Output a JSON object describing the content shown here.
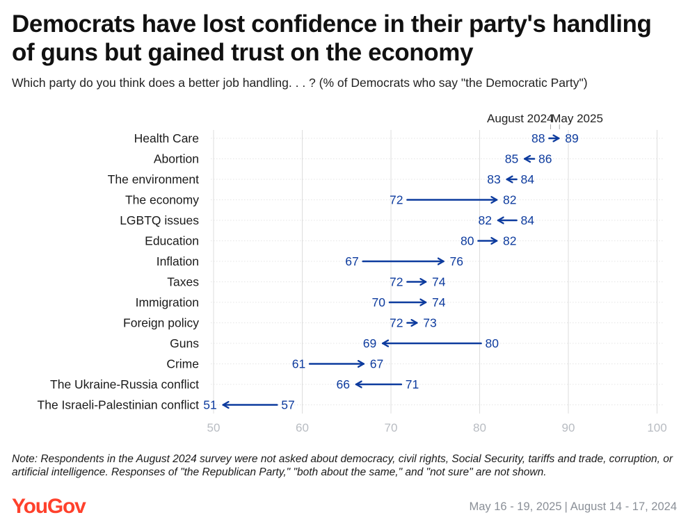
{
  "title": "Democrats have lost confidence in their party's handling of guns but gained trust on the economy",
  "subtitle": "Which party do you think does a better job handling. . . ? (% of Democrats who say \"the Democratic Party\")",
  "note": "Note: Respondents in the August 2024 survey were not asked about democracy, civil rights, Social Security, tariffs and trade, corruption, or artificial intelligence. Responses of \"the Republican Party,\" \"both about the same,\" and \"not sure\" are not shown.",
  "logo": "YouGov",
  "dates": {
    "may": "May 16 - 19, 2025",
    "separator": "|",
    "august": "August 14 - 17, 2024"
  },
  "colors": {
    "accent": "#0d3b9e",
    "grid": "#dcdcdc",
    "tick": "#b8bcc2",
    "logo": "#ff412c"
  },
  "chart_data": {
    "type": "dumbbell-arrow",
    "series_labels": {
      "from": "August 2024",
      "to": "May 2025"
    },
    "xlim": [
      50,
      100
    ],
    "xticks": [
      50,
      60,
      70,
      80,
      90,
      100
    ],
    "items": [
      {
        "label": "Health Care",
        "aug2024": 88,
        "may2025": 89
      },
      {
        "label": "Abortion",
        "aug2024": 86,
        "may2025": 85
      },
      {
        "label": "The environment",
        "aug2024": 84,
        "may2025": 83
      },
      {
        "label": "The economy",
        "aug2024": 72,
        "may2025": 82
      },
      {
        "label": "LGBTQ issues",
        "aug2024": 84,
        "may2025": 82
      },
      {
        "label": "Education",
        "aug2024": 80,
        "may2025": 82
      },
      {
        "label": "Inflation",
        "aug2024": 67,
        "may2025": 76
      },
      {
        "label": "Taxes",
        "aug2024": 72,
        "may2025": 74
      },
      {
        "label": "Immigration",
        "aug2024": 70,
        "may2025": 74
      },
      {
        "label": "Foreign policy",
        "aug2024": 72,
        "may2025": 73
      },
      {
        "label": "Guns",
        "aug2024": 80,
        "may2025": 69
      },
      {
        "label": "Crime",
        "aug2024": 61,
        "may2025": 67
      },
      {
        "label": "The Ukraine-Russia conflict",
        "aug2024": 71,
        "may2025": 66
      },
      {
        "label": "The Israeli-Palestinian conflict",
        "aug2024": 57,
        "may2025": 51
      }
    ]
  }
}
